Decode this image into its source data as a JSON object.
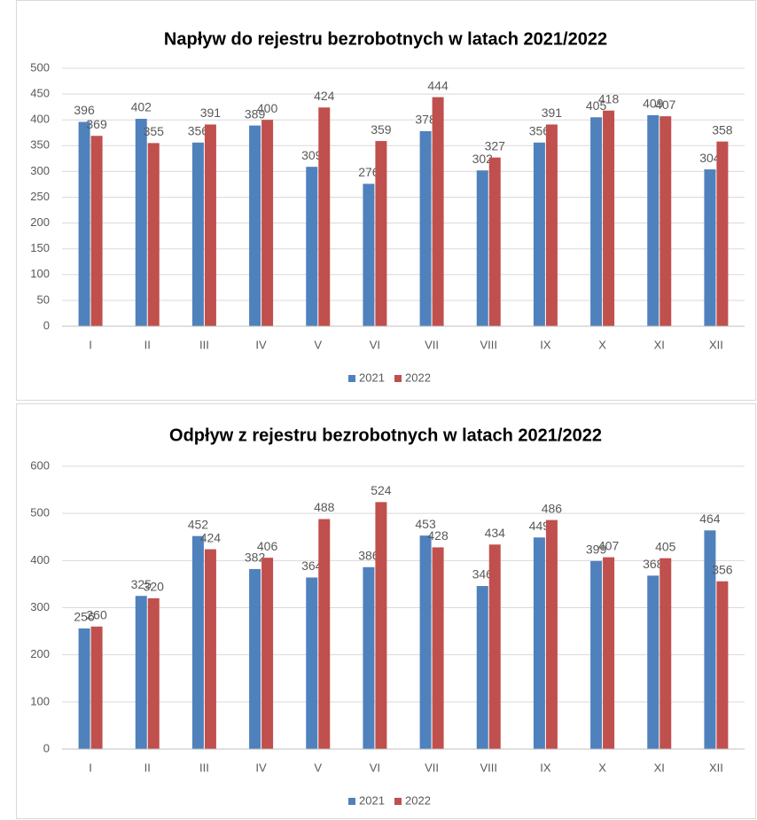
{
  "chart_data": [
    {
      "type": "bar",
      "title": "Napływ do rejestru bezrobotnych w latach 2021/2022",
      "categories": [
        "I",
        "II",
        "III",
        "IV",
        "V",
        "VI",
        "VII",
        "VIII",
        "IX",
        "X",
        "XI",
        "XII"
      ],
      "series": [
        {
          "name": "2021",
          "color": "#4f81bd",
          "values": [
            396,
            402,
            356,
            389,
            309,
            276,
            378,
            302,
            356,
            405,
            409,
            304
          ]
        },
        {
          "name": "2022",
          "color": "#c0504d",
          "values": [
            369,
            355,
            391,
            400,
            424,
            359,
            444,
            327,
            391,
            418,
            407,
            358
          ]
        }
      ],
      "ylim": [
        0,
        500
      ],
      "yticks": [
        0,
        50,
        100,
        150,
        200,
        250,
        300,
        350,
        400,
        450,
        500
      ],
      "grid": true,
      "legend": "bottom"
    },
    {
      "type": "bar",
      "title": "Odpływ z rejestru bezrobotnych w latach 2021/2022",
      "categories": [
        "I",
        "II",
        "III",
        "IV",
        "V",
        "VI",
        "VII",
        "VIII",
        "IX",
        "X",
        "XI",
        "XII"
      ],
      "series": [
        {
          "name": "2021",
          "color": "#4f81bd",
          "values": [
            256,
            325,
            452,
            382,
            364,
            386,
            453,
            346,
            449,
            399,
            368,
            464
          ]
        },
        {
          "name": "2022",
          "color": "#c0504d",
          "values": [
            260,
            320,
            424,
            406,
            488,
            524,
            428,
            434,
            486,
            407,
            405,
            356
          ]
        }
      ],
      "ylim": [
        0,
        600
      ],
      "yticks": [
        0,
        100,
        200,
        300,
        400,
        500,
        600
      ],
      "grid": true,
      "legend": "bottom"
    }
  ]
}
